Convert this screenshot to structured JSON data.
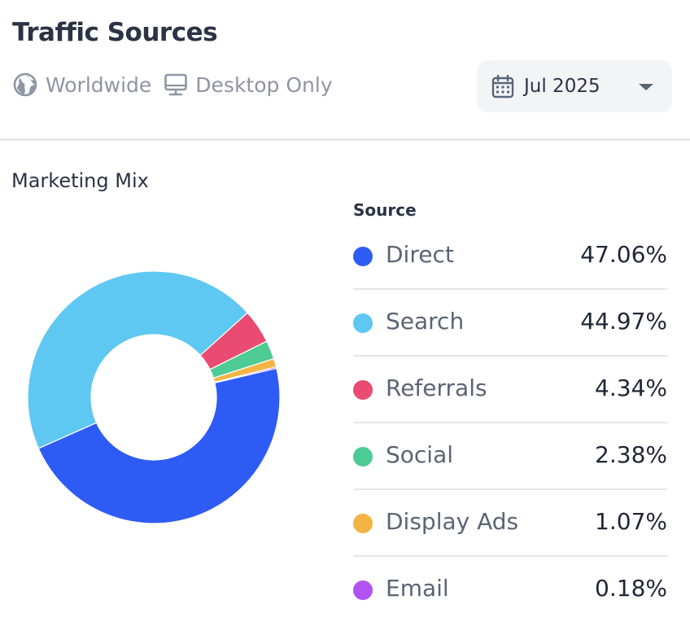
{
  "header": {
    "title": "Traffic Sources",
    "region": "Worldwide",
    "device": "Desktop Only",
    "date": "Jul 2025"
  },
  "section": {
    "title": "Marketing Mix"
  },
  "legend": {
    "header": "Source",
    "items": [
      {
        "name": "Direct",
        "value_text": "47.06%",
        "value": 47.06,
        "color": "#2f5bf5"
      },
      {
        "name": "Search",
        "value_text": "44.97%",
        "value": 44.97,
        "color": "#5ec8f2"
      },
      {
        "name": "Referrals",
        "value_text": "4.34%",
        "value": 4.34,
        "color": "#e94b72"
      },
      {
        "name": "Social",
        "value_text": "2.38%",
        "value": 2.38,
        "color": "#4ecb95"
      },
      {
        "name": "Display Ads",
        "value_text": "1.07%",
        "value": 1.07,
        "color": "#f4b443"
      },
      {
        "name": "Email",
        "value_text": "0.18%",
        "value": 0.18,
        "color": "#b153f2"
      }
    ]
  },
  "chart_data": {
    "type": "pie",
    "title": "Marketing Mix",
    "categories": [
      "Direct",
      "Search",
      "Referrals",
      "Social",
      "Display Ads",
      "Email"
    ],
    "values": [
      47.06,
      44.97,
      4.34,
      2.38,
      1.07,
      0.18
    ],
    "colors": [
      "#2f5bf5",
      "#5ec8f2",
      "#e94b72",
      "#4ecb95",
      "#f4b443",
      "#b153f2"
    ]
  }
}
